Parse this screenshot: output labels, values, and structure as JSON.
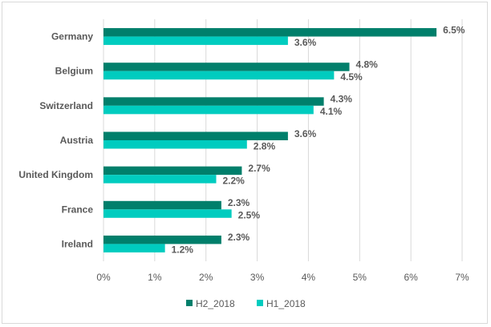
{
  "chart_data": {
    "type": "bar",
    "orientation": "horizontal",
    "categories": [
      "Germany",
      "Belgium",
      "Switzerland",
      "Austria",
      "United Kingdom",
      "France",
      "Ireland"
    ],
    "series": [
      {
        "name": "H2_2018",
        "color": "#007f6b",
        "values": [
          6.5,
          4.8,
          4.3,
          3.6,
          2.7,
          2.3,
          2.3
        ],
        "labels": [
          "6.5%",
          "4.8%",
          "4.3%",
          "3.6%",
          "2.7%",
          "2.3%",
          "2.3%"
        ]
      },
      {
        "name": "H1_2018",
        "color": "#00ccbf",
        "values": [
          3.6,
          4.5,
          4.1,
          2.8,
          2.2,
          2.5,
          1.2
        ],
        "labels": [
          "3.6%",
          "4.5%",
          "4.1%",
          "2.8%",
          "2.2%",
          "2.5%",
          "1.2%"
        ]
      }
    ],
    "xlim": [
      0,
      7
    ],
    "xticks": [
      "0%",
      "1%",
      "2%",
      "3%",
      "4%",
      "5%",
      "6%",
      "7%"
    ],
    "grid": true,
    "legend": "bottom",
    "title": "",
    "xlabel": "",
    "ylabel": ""
  }
}
